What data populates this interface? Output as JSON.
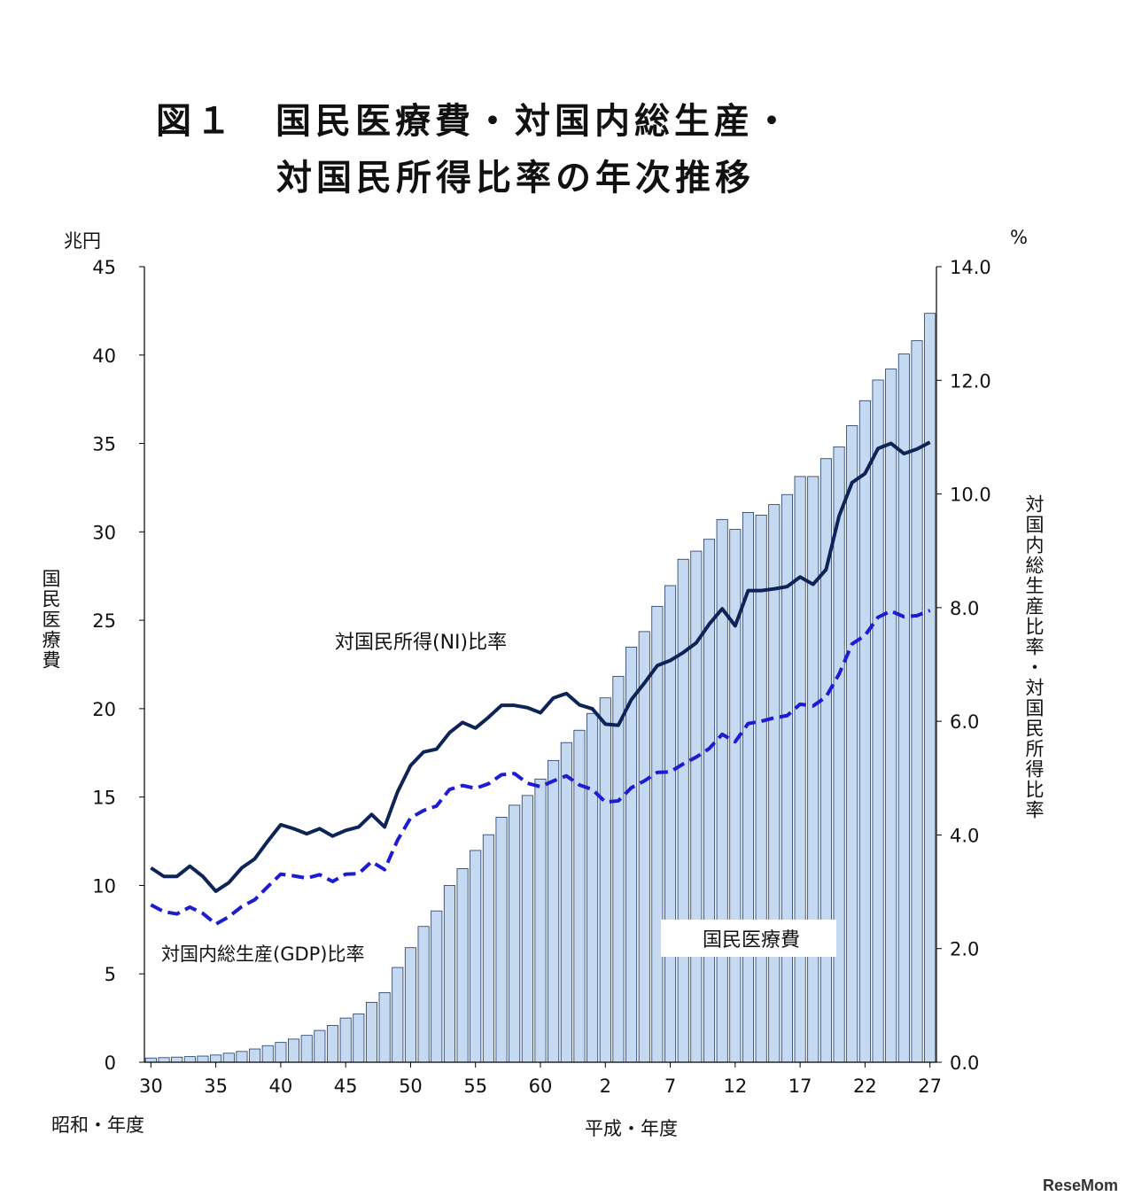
{
  "title": {
    "line1": "図１　国民医療費・対国内総生産・",
    "line2": "対国民所得比率の年次推移"
  },
  "left_unit": "兆円",
  "right_unit": "%",
  "left_axis_label": "国民医療費",
  "right_axis_label": "対国内総生産比率・対国民所得比率",
  "era_showa": "昭和・年度",
  "era_heisei": "平成・年度",
  "watermark": "ReseMom",
  "colors": {
    "bar_fill": "#c5d9f1",
    "bar_stroke": "#1f3864",
    "ni_line": "#0d2457",
    "gdp_line": "#1c1cd1"
  },
  "chart_data": {
    "type": "bar+line",
    "categories": [
      "30",
      "31",
      "32",
      "33",
      "34",
      "35",
      "36",
      "37",
      "38",
      "39",
      "40",
      "41",
      "42",
      "43",
      "44",
      "45",
      "46",
      "47",
      "48",
      "49",
      "50",
      "51",
      "52",
      "53",
      "54",
      "55",
      "56",
      "57",
      "58",
      "59",
      "60",
      "61",
      "62",
      "63",
      "元",
      "2",
      "3",
      "4",
      "5",
      "6",
      "7",
      "8",
      "9",
      "10",
      "11",
      "12",
      "13",
      "14",
      "15",
      "16",
      "17",
      "18",
      "19",
      "20",
      "21",
      "22",
      "23",
      "24",
      "25",
      "26",
      "27"
    ],
    "x_tick_labels": [
      "30",
      "35",
      "40",
      "45",
      "50",
      "55",
      "60",
      "2",
      "7",
      "12",
      "17",
      "22",
      "27"
    ],
    "y_left_ticks": [
      "0",
      "5",
      "10",
      "15",
      "20",
      "25",
      "30",
      "35",
      "40",
      "45"
    ],
    "y_right_ticks": [
      "0.0",
      "2.0",
      "4.0",
      "6.0",
      "8.0",
      "10.0",
      "12.0",
      "14.0"
    ],
    "ylim_left": [
      0,
      45
    ],
    "ylim_right": [
      0,
      14
    ],
    "series": [
      {
        "name": "国民医療費",
        "type": "bar",
        "axis": "left",
        "values": [
          0.24,
          0.26,
          0.29,
          0.32,
          0.35,
          0.41,
          0.51,
          0.61,
          0.75,
          0.94,
          1.12,
          1.31,
          1.52,
          1.8,
          2.08,
          2.5,
          2.73,
          3.39,
          3.94,
          5.36,
          6.48,
          7.68,
          8.56,
          10.0,
          10.95,
          11.98,
          12.87,
          13.86,
          14.54,
          15.09,
          16.02,
          17.07,
          18.08,
          18.78,
          19.73,
          20.61,
          21.83,
          23.48,
          24.36,
          25.79,
          26.96,
          28.45,
          28.91,
          29.58,
          30.7,
          30.14,
          31.1,
          30.95,
          31.54,
          32.11,
          33.13,
          33.13,
          34.14,
          34.81,
          36.01,
          37.42,
          38.59,
          39.21,
          40.06,
          40.81,
          42.36
        ]
      },
      {
        "name": "対国民所得(NI)比率",
        "type": "line",
        "axis": "right",
        "values": [
          3.42,
          3.27,
          3.27,
          3.45,
          3.27,
          3.01,
          3.16,
          3.42,
          3.58,
          3.89,
          4.18,
          4.11,
          4.02,
          4.11,
          3.98,
          4.08,
          4.14,
          4.36,
          4.14,
          4.76,
          5.22,
          5.46,
          5.51,
          5.8,
          5.98,
          5.88,
          6.07,
          6.28,
          6.28,
          6.24,
          6.15,
          6.41,
          6.49,
          6.29,
          6.22,
          5.95,
          5.93,
          6.38,
          6.67,
          6.98,
          7.07,
          7.21,
          7.38,
          7.71,
          7.98,
          7.68,
          8.3,
          8.3,
          8.33,
          8.37,
          8.54,
          8.41,
          8.67,
          9.61,
          10.2,
          10.36,
          10.8,
          10.89,
          10.71,
          10.79,
          10.91
        ]
      },
      {
        "name": "対国内総生産(GDP)比率",
        "type": "line",
        "axis": "right",
        "dashed": true,
        "values": [
          2.77,
          2.65,
          2.61,
          2.73,
          2.62,
          2.43,
          2.56,
          2.74,
          2.86,
          3.09,
          3.31,
          3.28,
          3.24,
          3.3,
          3.18,
          3.31,
          3.32,
          3.53,
          3.39,
          3.91,
          4.3,
          4.43,
          4.51,
          4.8,
          4.87,
          4.82,
          4.9,
          5.06,
          5.08,
          4.91,
          4.85,
          4.95,
          5.04,
          4.88,
          4.8,
          4.58,
          4.6,
          4.83,
          4.95,
          5.1,
          5.11,
          5.25,
          5.37,
          5.52,
          5.77,
          5.64,
          5.96,
          6.0,
          6.06,
          6.1,
          6.3,
          6.27,
          6.43,
          6.83,
          7.36,
          7.51,
          7.83,
          7.94,
          7.84,
          7.86,
          7.95
        ]
      }
    ],
    "annotations": {
      "ni_label": "対国民所得(NI)比率",
      "gdp_label": "対国内総生産(GDP)比率",
      "bar_label": "国民医療費"
    }
  }
}
